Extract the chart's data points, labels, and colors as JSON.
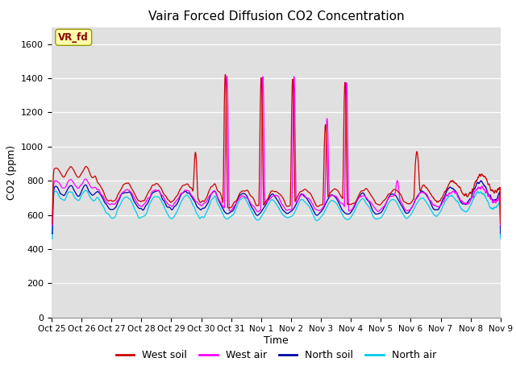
{
  "title": "Vaira Forced Diffusion CO2 Concentration",
  "xlabel": "Time",
  "ylabel": "CO2 (ppm)",
  "ylim": [
    0,
    1700
  ],
  "yticks": [
    0,
    200,
    400,
    600,
    800,
    1000,
    1200,
    1400,
    1600
  ],
  "plot_bg": "#e0e0e0",
  "fig_bg": "#ffffff",
  "legend_labels": [
    "West soil",
    "West air",
    "North soil",
    "North air"
  ],
  "line_colors": {
    "west_soil": "#cc0000",
    "west_air": "#ff00ff",
    "north_soil": "#0000aa",
    "north_air": "#00ccee"
  },
  "annotation_text": "VR_fd",
  "annotation_color": "#8b0000",
  "annotation_bg": "#ffffaa",
  "annotation_edge": "#999900",
  "x_tick_labels": [
    "Oct 25",
    "Oct 26",
    "Oct 27",
    "Oct 28",
    "Oct 29",
    "Oct 30",
    "Oct 31",
    "Nov 1",
    "Nov 2",
    "Nov 3",
    "Nov 4",
    "Nov 5",
    "Nov 6",
    "Nov 7",
    "Nov 8",
    "Nov 9"
  ],
  "n_points": 2000,
  "date_end": 15.0
}
